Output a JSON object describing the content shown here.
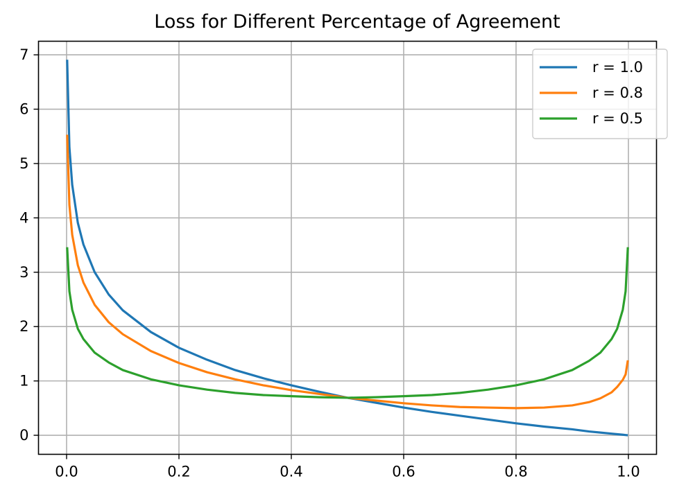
{
  "chart_data": {
    "type": "line",
    "title": "Loss for Different Percentage of Agreement",
    "xlabel": "",
    "ylabel": "",
    "xlim": [
      -0.05,
      1.05
    ],
    "ylim": [
      -0.35,
      7.25
    ],
    "xticks": [
      0.0,
      0.2,
      0.4,
      0.6,
      0.8,
      1.0
    ],
    "xtick_labels": [
      "0.0",
      "0.2",
      "0.4",
      "0.6",
      "0.8",
      "1.0"
    ],
    "yticks": [
      0,
      1,
      2,
      3,
      4,
      5,
      6,
      7
    ],
    "ytick_labels": [
      "0",
      "1",
      "2",
      "3",
      "4",
      "5",
      "6",
      "7"
    ],
    "grid": true,
    "legend_position": "top-right",
    "x": [
      0.001,
      0.005,
      0.01,
      0.02,
      0.03,
      0.05,
      0.075,
      0.1,
      0.15,
      0.2,
      0.25,
      0.3,
      0.35,
      0.4,
      0.45,
      0.5,
      0.55,
      0.6,
      0.65,
      0.7,
      0.75,
      0.8,
      0.85,
      0.9,
      0.93,
      0.95,
      0.97,
      0.98,
      0.99,
      0.995,
      0.999
    ],
    "series": [
      {
        "name": "r = 1.0",
        "color": "#1f77b4",
        "values": [
          6.91,
          5.3,
          4.61,
          3.91,
          3.51,
          3.0,
          2.59,
          2.3,
          1.9,
          1.61,
          1.39,
          1.2,
          1.05,
          0.92,
          0.8,
          0.69,
          0.6,
          0.51,
          0.43,
          0.36,
          0.29,
          0.22,
          0.16,
          0.11,
          0.07,
          0.05,
          0.03,
          0.02,
          0.01,
          0.005,
          0.001
        ]
      },
      {
        "name": "r = 0.8",
        "color": "#ff7f0e",
        "values": [
          5.53,
          4.24,
          3.69,
          3.13,
          2.81,
          2.4,
          2.08,
          1.86,
          1.55,
          1.33,
          1.16,
          1.03,
          0.92,
          0.83,
          0.76,
          0.69,
          0.64,
          0.59,
          0.55,
          0.52,
          0.51,
          0.5,
          0.51,
          0.55,
          0.61,
          0.68,
          0.79,
          0.89,
          1.02,
          1.12,
          1.38
        ]
      },
      {
        "name": "r = 0.5",
        "color": "#2ca02c",
        "values": [
          3.46,
          2.65,
          2.31,
          1.96,
          1.77,
          1.52,
          1.34,
          1.2,
          1.03,
          0.92,
          0.84,
          0.78,
          0.74,
          0.72,
          0.7,
          0.69,
          0.7,
          0.72,
          0.74,
          0.78,
          0.84,
          0.92,
          1.03,
          1.2,
          1.37,
          1.52,
          1.77,
          1.96,
          2.31,
          2.65,
          3.46
        ]
      }
    ]
  }
}
